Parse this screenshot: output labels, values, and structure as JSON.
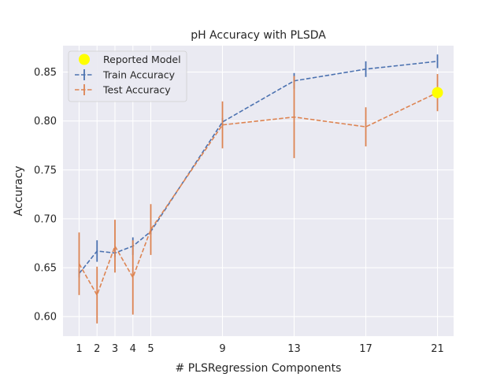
{
  "chart_data": {
    "type": "line",
    "title": "pH Accuracy with PLSDA",
    "xlabel": "# PLSRegression Components",
    "ylabel": "Accuracy",
    "xlim": [
      0.1,
      21.9
    ],
    "ylim": [
      0.58,
      0.877
    ],
    "xticks": [
      1,
      2,
      3,
      4,
      5,
      9,
      13,
      17,
      21
    ],
    "yticks": [
      0.6,
      0.65,
      0.7,
      0.75,
      0.8,
      0.85
    ],
    "ytick_labels": [
      "0.60",
      "0.65",
      "0.70",
      "0.75",
      "0.80",
      "0.85"
    ],
    "grid": true,
    "legend_position": "top-left",
    "background_color": "#eaeaf2",
    "series": [
      {
        "name": "Train Accuracy",
        "color": "#4c72b0",
        "linestyle": "dashed",
        "x": [
          1,
          2,
          3,
          4,
          5,
          9,
          13,
          17,
          21
        ],
        "y": [
          0.644,
          0.667,
          0.665,
          0.672,
          0.687,
          0.799,
          0.841,
          0.853,
          0.861
        ],
        "err": [
          0.004,
          0.011,
          0.004,
          0.009,
          0.003,
          0.004,
          0.008,
          0.008,
          0.007
        ]
      },
      {
        "name": "Test Accuracy",
        "color": "#dd8452",
        "linestyle": "dashed",
        "x": [
          1,
          2,
          3,
          4,
          5,
          9,
          13,
          17,
          21
        ],
        "y": [
          0.654,
          0.622,
          0.672,
          0.64,
          0.689,
          0.796,
          0.804,
          0.794,
          0.829
        ],
        "err": [
          0.032,
          0.029,
          0.027,
          0.038,
          0.026,
          0.024,
          0.042,
          0.02,
          0.019
        ]
      }
    ],
    "highlight": {
      "name": "Reported Model",
      "color": "#ffff00",
      "x": 21,
      "y": 0.829
    }
  }
}
